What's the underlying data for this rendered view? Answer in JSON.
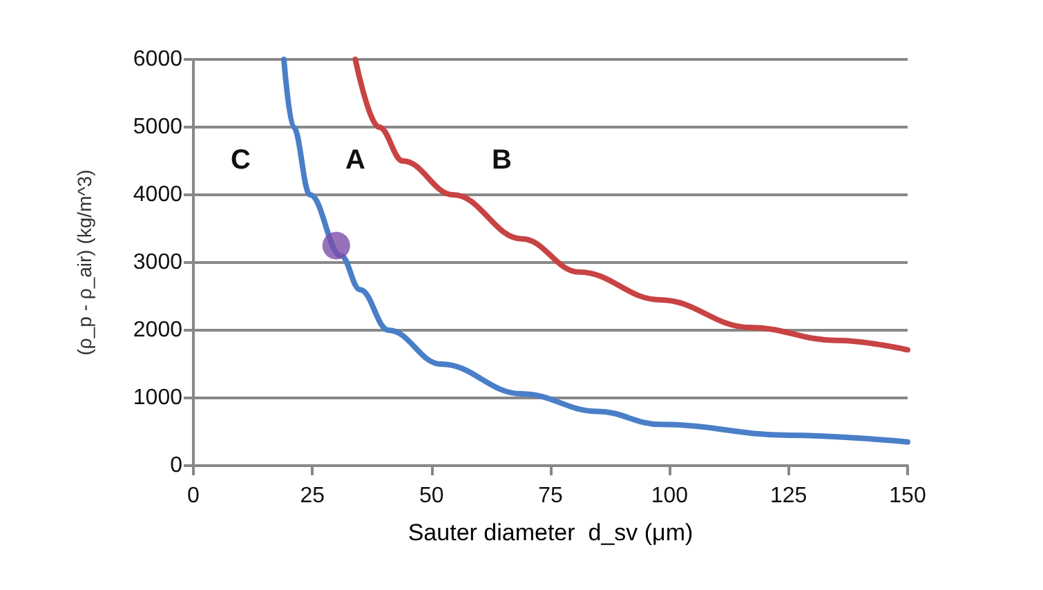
{
  "chart_data": {
    "type": "line",
    "xlabel": "Sauter diameter  d_sv (μm)",
    "ylabel": "(ρ_p - ρ_air) (kg/m^3)",
    "xlim": [
      0,
      150
    ],
    "xticks": [
      0,
      25,
      50,
      75,
      100,
      125,
      150
    ],
    "ylim": [
      0,
      6000
    ],
    "yticks": [
      0,
      1000,
      2000,
      3000,
      4000,
      5000,
      6000
    ],
    "grid": "y",
    "marker": "none",
    "line_style": "solid",
    "series": [
      {
        "color": "#4a7fc8",
        "x": [
          19,
          21,
          24.5,
          31,
          35,
          41,
          52,
          69,
          85,
          98,
          125,
          150
        ],
        "values": [
          6000,
          5000,
          4000,
          3100,
          2600,
          2000,
          1500,
          1060,
          800,
          610,
          450,
          350
        ]
      },
      {
        "color": "#c84343",
        "x": [
          34,
          39,
          44,
          54.6,
          69,
          81,
          98,
          117,
          135,
          150
        ],
        "values": [
          6000,
          5000,
          4500,
          4000,
          3350,
          2860,
          2450,
          2040,
          1850,
          1710
        ]
      },
      {
        "type": "scatter",
        "color": "#7b4fa8",
        "x": [
          30
        ],
        "values": [
          3250
        ],
        "marker": "circle"
      }
    ],
    "annotations": [
      "C",
      "A",
      "B"
    ]
  }
}
